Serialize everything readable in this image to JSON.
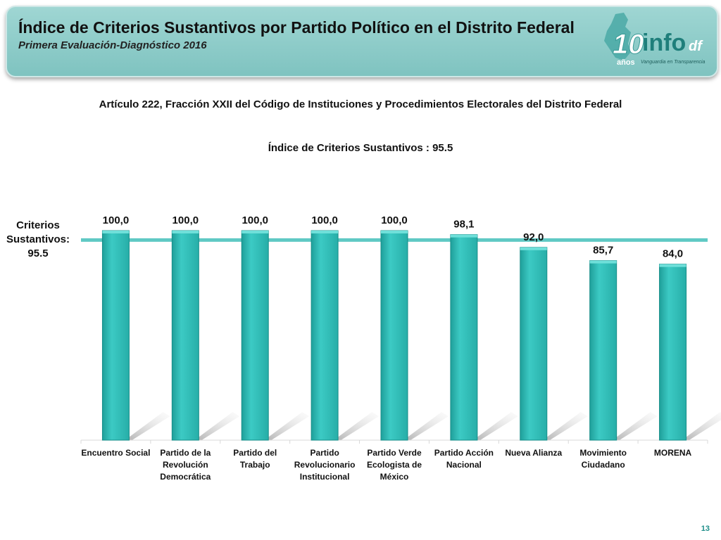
{
  "header": {
    "title": "Índice de Criterios Sustantivos por Partido Político en el Distrito Federal",
    "subtitle": "Primera Evaluación-Diagnóstico 2016",
    "logo_years": "10",
    "logo_anos": "años",
    "logo_brand": "info",
    "logo_suffix": "df",
    "logo_tagline": "Vanguardia en Transparencia"
  },
  "chart_data": {
    "type": "bar",
    "subtitle": "Artículo 222, Fracción XXII del Código de Instituciones y Procedimientos Electorales del Distrito Federal",
    "title": "Índice de Criterios Sustantivos : 95.5",
    "categories": [
      [
        "Encuentro Social"
      ],
      [
        "Partido de la",
        "Revolución",
        "Democrática"
      ],
      [
        "Partido del",
        "Trabajo"
      ],
      [
        "Partido",
        "Revolucionario",
        "Institucional"
      ],
      [
        "Partido Verde",
        "Ecologista de",
        "México"
      ],
      [
        "Partido Acción",
        "Nacional"
      ],
      [
        "Nueva Alianza"
      ],
      [
        "Movimiento",
        "Ciudadano"
      ],
      [
        "MORENA"
      ]
    ],
    "values": [
      100.0,
      100.0,
      100.0,
      100.0,
      100.0,
      98.1,
      92.0,
      85.7,
      84.0
    ],
    "value_labels": [
      "100,0",
      "100,0",
      "100,0",
      "100,0",
      "100,0",
      "98,1",
      "92,0",
      "85,7",
      "84,0"
    ],
    "ylim": [
      0,
      100
    ],
    "reference_line": {
      "value": 95.5,
      "label": [
        "Criterios",
        "Sustantivos:",
        "95.5"
      ]
    },
    "bar_color": "#2fbfb9",
    "line_color": "#5fc9c4"
  },
  "slide_number": "13"
}
